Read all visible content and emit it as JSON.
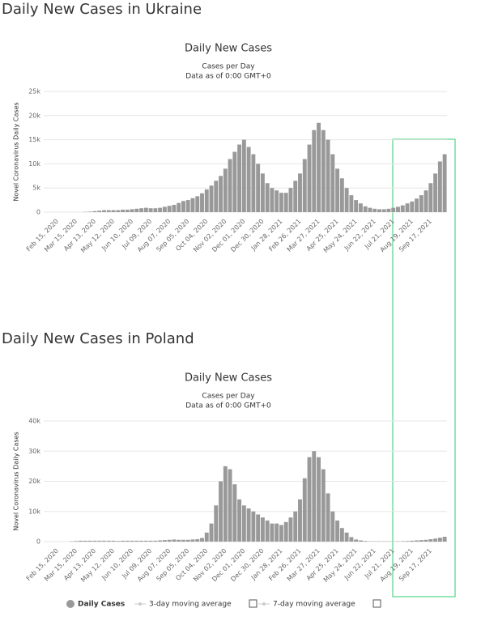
{
  "chart_data": [
    {
      "type": "bar",
      "heading": "Daily New Cases in Ukraine",
      "title": "Daily New Cases",
      "subtitle": "Cases per Day",
      "note": "Data as of 0:00 GMT+0",
      "ylabel": "Novel Coronavirus Daily Cases",
      "color": "#999999",
      "grid": true,
      "ylim": [
        0,
        25000
      ],
      "yticks": [
        0,
        {
          "value": 5000,
          "label": "5k"
        },
        {
          "value": 10000,
          "label": "10k"
        },
        {
          "value": 15000,
          "label": "15k"
        },
        {
          "value": 20000,
          "label": "20k"
        },
        {
          "value": 25000,
          "label": "25k"
        }
      ],
      "categories": [
        "Feb 15, 2020",
        null,
        null,
        null,
        "Mar 15, 2020",
        null,
        null,
        null,
        "Apr 13, 2020",
        null,
        null,
        null,
        "May 12, 2020",
        null,
        null,
        null,
        "Jun 10, 2020",
        null,
        null,
        null,
        "Jul 09, 2020",
        null,
        null,
        null,
        "Aug 07, 2020",
        null,
        null,
        null,
        "Sep 05, 2020",
        null,
        null,
        null,
        "Oct 04, 2020",
        null,
        null,
        null,
        "Nov 02, 2020",
        null,
        null,
        null,
        "Dec 01, 2020",
        null,
        null,
        null,
        "Dec 30, 2020",
        null,
        null,
        null,
        "Jan 28, 2021",
        null,
        null,
        null,
        "Feb 26, 2021",
        null,
        null,
        null,
        "Mar 27, 2021",
        null,
        null,
        null,
        "Apr 25, 2021",
        null,
        null,
        null,
        "May 24, 2021",
        null,
        null,
        null,
        "Jun 22, 2021",
        null,
        null,
        null,
        "Jul 21, 2021",
        null,
        null,
        null,
        "Aug 19, 2021",
        null,
        null,
        null,
        "Sep 17, 2021",
        null,
        null,
        null
      ],
      "values": [
        0,
        0,
        0,
        0,
        0,
        0,
        50,
        100,
        200,
        300,
        400,
        400,
        400,
        400,
        500,
        500,
        600,
        700,
        800,
        900,
        800,
        800,
        900,
        1100,
        1300,
        1500,
        1900,
        2300,
        2500,
        2900,
        3300,
        3900,
        4700,
        5500,
        6500,
        7500,
        9000,
        11000,
        12500,
        14000,
        15000,
        13500,
        12000,
        10000,
        8000,
        6000,
        5000,
        4500,
        4000,
        4000,
        5000,
        6500,
        8000,
        11000,
        14000,
        17000,
        18500,
        17000,
        15000,
        12000,
        9000,
        7000,
        5000,
        3500,
        2500,
        1800,
        1200,
        900,
        700,
        600,
        600,
        700,
        900,
        1100,
        1400,
        1800,
        2200,
        2800,
        3500,
        4500,
        6000,
        8000,
        10500,
        12000
      ]
    },
    {
      "type": "bar",
      "heading": "Daily New Cases in Poland",
      "title": "Daily New Cases",
      "subtitle": "Cases per Day",
      "note": "Data as of 0:00 GMT+0",
      "ylabel": "Novel Coronavirus Daily Cases",
      "color": "#999999",
      "grid": true,
      "legend": [
        "Daily Cases",
        "3-day moving average",
        "7-day moving average"
      ],
      "ylim": [
        0,
        40000
      ],
      "yticks": [
        0,
        {
          "value": 10000,
          "label": "10k"
        },
        {
          "value": 20000,
          "label": "20k"
        },
        {
          "value": 30000,
          "label": "30k"
        },
        {
          "value": 40000,
          "label": "40k"
        }
      ],
      "categories": [
        "Feb 15, 2020",
        null,
        null,
        null,
        "Mar 15, 2020",
        null,
        null,
        null,
        "Apr 13, 2020",
        null,
        null,
        null,
        "May 12, 2020",
        null,
        null,
        null,
        "Jun 10, 2020",
        null,
        null,
        null,
        "Jul 09, 2020",
        null,
        null,
        null,
        "Aug 07, 2020",
        null,
        null,
        null,
        "Sep 05, 2020",
        null,
        null,
        null,
        "Oct 04, 2020",
        null,
        null,
        null,
        "Nov 02, 2020",
        null,
        null,
        null,
        "Dec 01, 2020",
        null,
        null,
        null,
        "Dec 30, 2020",
        null,
        null,
        null,
        "Jan 28, 2021",
        null,
        null,
        null,
        "Feb 26, 2021",
        null,
        null,
        null,
        "Mar 27, 2021",
        null,
        null,
        null,
        "Apr 25, 2021",
        null,
        null,
        null,
        "May 24, 2021",
        null,
        null,
        null,
        "Jun 22, 2021",
        null,
        null,
        null,
        "Jul 21, 2021",
        null,
        null,
        null,
        "Aug 19, 2021",
        null,
        null,
        null,
        "Sep 17, 2021",
        null,
        null,
        null
      ],
      "values": [
        0,
        0,
        0,
        100,
        200,
        300,
        300,
        300,
        300,
        300,
        300,
        300,
        300,
        200,
        300,
        300,
        300,
        300,
        300,
        300,
        300,
        300,
        400,
        500,
        600,
        700,
        600,
        600,
        600,
        700,
        800,
        1200,
        3000,
        6000,
        12000,
        20000,
        25000,
        24000,
        19000,
        14000,
        12000,
        11000,
        10000,
        9000,
        8000,
        7000,
        6000,
        6000,
        5500,
        6500,
        8000,
        10000,
        14000,
        21000,
        28000,
        30000,
        28000,
        24000,
        16000,
        10000,
        7000,
        4500,
        3000,
        1500,
        700,
        400,
        200,
        100,
        100,
        100,
        100,
        100,
        100,
        100,
        150,
        200,
        300,
        400,
        500,
        600,
        800,
        1000,
        1300,
        1600
      ]
    }
  ]
}
